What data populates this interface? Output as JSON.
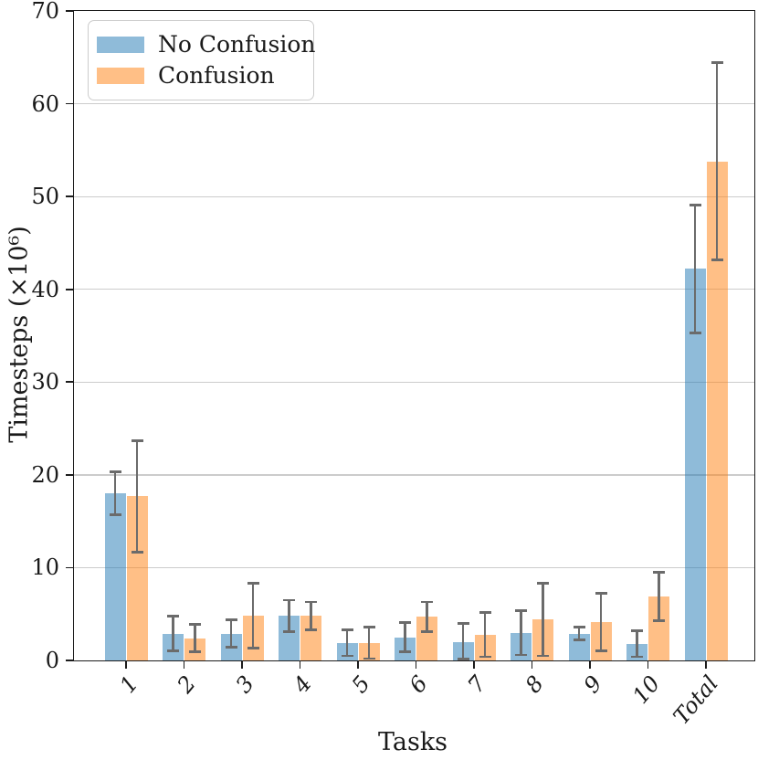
{
  "figure": {
    "background": "#ffffff",
    "text_color": "#1a1a1a",
    "gridline_color": "#cccccc",
    "spine_color": "#1c1c1c"
  },
  "chart_data": {
    "type": "bar",
    "title": "",
    "xlabel": "Tasks",
    "ylabel": "Timesteps (×10⁶)",
    "ylim": [
      0,
      70
    ],
    "yticks": [
      0,
      10,
      20,
      30,
      40,
      50,
      60,
      70
    ],
    "grid": "horizontal",
    "legend_position": "upper-left",
    "error_bars": true,
    "error_bar_color": "#6b6b6b",
    "categories": [
      "1",
      "2",
      "3",
      "4",
      "5",
      "6",
      "7",
      "8",
      "9",
      "10",
      "Total"
    ],
    "series": [
      {
        "name": "No Confusion",
        "color": "#1f77b4",
        "alpha": 0.5,
        "values": [
          18.0,
          2.9,
          2.9,
          4.8,
          1.9,
          2.5,
          2.0,
          3.0,
          2.9,
          1.8,
          42.2
        ],
        "errors": [
          2.3,
          1.9,
          1.5,
          1.7,
          1.4,
          1.6,
          2.0,
          2.4,
          0.7,
          1.4,
          6.9
        ]
      },
      {
        "name": "Confusion",
        "color": "#ff7f0e",
        "alpha": 0.5,
        "values": [
          17.7,
          2.4,
          4.8,
          4.8,
          1.9,
          4.7,
          2.8,
          4.4,
          4.1,
          6.9,
          53.8
        ],
        "errors": [
          6.0,
          1.5,
          3.5,
          1.5,
          1.7,
          1.6,
          2.4,
          3.9,
          3.1,
          2.6,
          10.6
        ]
      }
    ]
  }
}
